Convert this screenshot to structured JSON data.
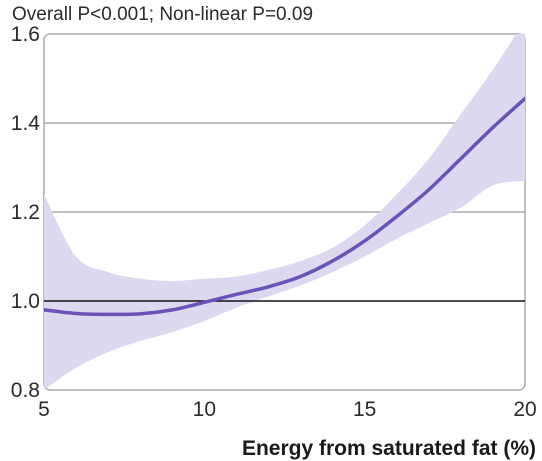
{
  "chart_data": {
    "type": "line",
    "subtitle": "Overall P<0.001; Non-linear P=0.09",
    "xlabel": "Energy from saturated fat (%)",
    "ylabel": "",
    "xlim": [
      5,
      20
    ],
    "ylim": [
      0.8,
      1.6
    ],
    "x_ticks": [
      5,
      10,
      15,
      20
    ],
    "x_tick_labels": [
      "5",
      "10",
      "15",
      "20"
    ],
    "y_ticks": [
      0.8,
      1.0,
      1.2,
      1.4,
      1.6
    ],
    "y_tick_labels": [
      "0.8",
      "1.0",
      "1.2",
      "1.4",
      "1.6"
    ],
    "reference_line": 1.0,
    "grid": "horizontal",
    "series": [
      {
        "x": [
          5,
          6,
          7,
          8,
          9,
          10,
          11,
          12,
          13,
          14,
          15,
          16,
          17,
          18,
          19,
          20
        ],
        "y": [
          0.98,
          0.972,
          0.97,
          0.971,
          0.98,
          0.997,
          1.015,
          1.032,
          1.055,
          1.09,
          1.135,
          1.19,
          1.25,
          1.32,
          1.39,
          1.455
        ],
        "lower": [
          0.8,
          0.85,
          0.885,
          0.91,
          0.93,
          0.955,
          0.985,
          1.01,
          1.035,
          1.065,
          1.1,
          1.14,
          1.175,
          1.21,
          1.26,
          1.27
        ],
        "upper": [
          1.24,
          1.1,
          1.065,
          1.05,
          1.045,
          1.05,
          1.055,
          1.07,
          1.09,
          1.12,
          1.17,
          1.24,
          1.32,
          1.42,
          1.52,
          1.63
        ]
      }
    ],
    "colors": {
      "line": "#6b52b8",
      "band": "#dcd8ef",
      "grid": "#9a9a9a",
      "reference": "#111111",
      "frame": "#aaaaaa"
    }
  }
}
